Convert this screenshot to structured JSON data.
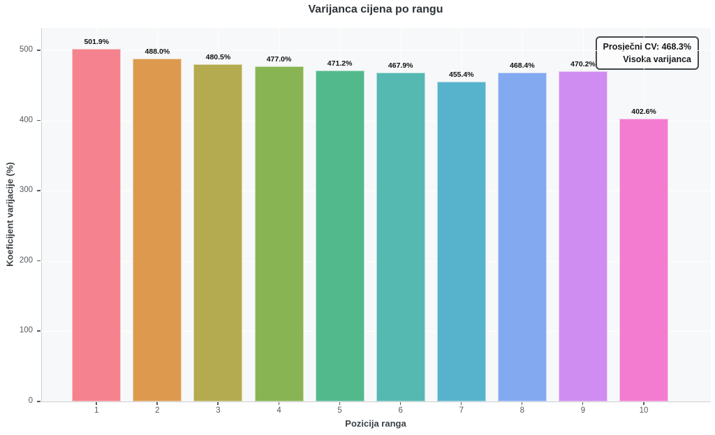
{
  "chart_data": {
    "type": "bar",
    "title": "Varijanca cijena po rangu",
    "xlabel": "Pozicija ranga",
    "ylabel": "Koeficijent varijacije (%)",
    "categories": [
      "1",
      "2",
      "3",
      "4",
      "5",
      "6",
      "7",
      "8",
      "9",
      "10"
    ],
    "values": [
      501.9,
      488.0,
      480.5,
      477.0,
      471.2,
      467.9,
      455.4,
      468.4,
      470.2,
      402.6
    ],
    "value_labels": [
      "501.9%",
      "488.0%",
      "480.5%",
      "477.0%",
      "471.2%",
      "467.9%",
      "455.4%",
      "468.4%",
      "470.2%",
      "402.6%"
    ],
    "bar_colors": [
      "#f4838f",
      "#dd9a4e",
      "#b4ab50",
      "#88b453",
      "#52b98d",
      "#55b8b1",
      "#57b3cc",
      "#83aaf1",
      "#cf8df2",
      "#f37cd1"
    ],
    "ylim": [
      0,
      532
    ],
    "yticks": [
      0,
      100,
      200,
      300,
      400,
      500
    ],
    "grid": true,
    "legend_position": "upper right",
    "annotation": {
      "line1": "Prosječni CV: 468.3%",
      "line2": "Visoka varijanca"
    }
  },
  "colors": {
    "plot_background": "#f7f8f9",
    "figure_background": "#ffffff",
    "gridline": "#ffffff",
    "spine": "#cdd0d4",
    "title_text": "#2d3338",
    "tick_text": "#555a5e",
    "annotation_border": "#43474c"
  }
}
